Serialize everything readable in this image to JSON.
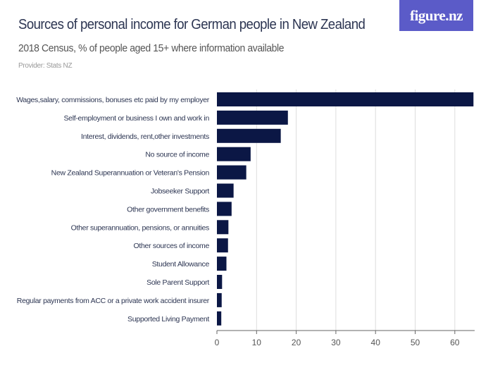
{
  "header": {
    "title": "Sources of personal income for German people in New Zealand",
    "subtitle": "2018 Census, % of people aged 15+ where information available",
    "provider": "Provider: Stats NZ",
    "logo": "figure.nz"
  },
  "colors": {
    "bar": "#0b1745",
    "logo_bg": "#5b5bc8",
    "grid": "#dddddd"
  },
  "chart_data": {
    "type": "bar",
    "orientation": "horizontal",
    "categories": [
      "Wages,salary, commissions, bonuses etc paid by my employer",
      "Self-employment or business I own and work in",
      "Interest, dividends, rent,other investments",
      "No source of income",
      "New Zealand Superannuation or Veteran's Pension",
      "Jobseeker Support",
      "Other government benefits",
      "Other superannuation, pensions, or annuities",
      "Other sources of income",
      "Student Allowance",
      "Sole Parent Support",
      "Regular payments from ACC or a private work accident insurer",
      "Supported Living Payment"
    ],
    "values": [
      64.7,
      17.9,
      16.1,
      8.5,
      7.4,
      4.2,
      3.7,
      2.9,
      2.8,
      2.4,
      1.3,
      1.2,
      1.1
    ],
    "xlim": [
      0,
      65
    ],
    "xticks": [
      "0",
      "10",
      "20",
      "30",
      "40",
      "50",
      "60"
    ],
    "grid": true,
    "xlabel": "",
    "ylabel": ""
  }
}
